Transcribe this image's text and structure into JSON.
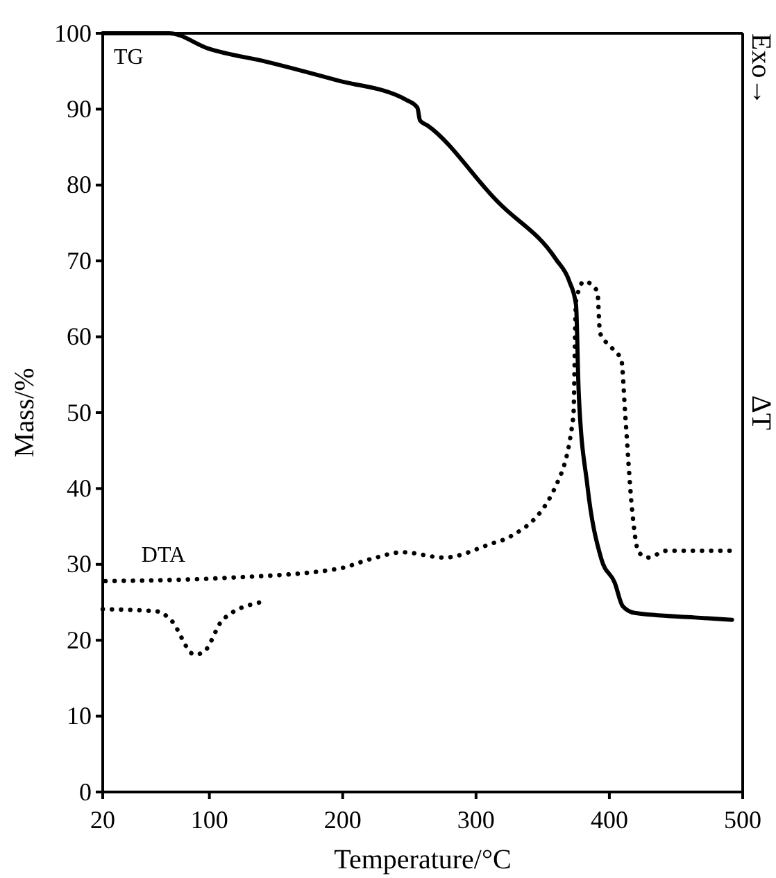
{
  "chart_data": {
    "type": "line",
    "xlabel": "Temperature/°C",
    "ylabel": "Mass/%",
    "y2label": "ΔT",
    "annotations": [
      "Exo→"
    ],
    "xlim": [
      20,
      500
    ],
    "xticks": [
      20,
      100,
      200,
      300,
      400,
      500
    ],
    "ylim": [
      0,
      100
    ],
    "yticks": [
      0,
      10,
      20,
      30,
      40,
      50,
      60,
      70,
      80,
      90,
      100
    ],
    "series": [
      {
        "name": "TG",
        "color": "#000000",
        "line_style": "solid",
        "x": [
          20,
          70,
          99,
          144,
          196,
          248,
          256,
          258,
          264,
          318,
          321,
          360,
          370,
          375,
          377,
          383.5,
          394,
          404,
          410,
          419,
          464,
          492
        ],
        "values": [
          100,
          100,
          98,
          96.2,
          93.8,
          91.2,
          90.2,
          88.5,
          87.8,
          77.5,
          77,
          70.2,
          67.3,
          64.2,
          52.7,
          40.4,
          30.7,
          27.6,
          24.5,
          23.6,
          23,
          22.7
        ]
      },
      {
        "name": "DTA",
        "color": "#000000",
        "line_style": "dotted",
        "x": [
          22,
          110,
          196,
          221,
          245,
          276,
          311,
          325,
          360,
          373,
          375,
          381,
          391,
          393,
          401,
          409,
          412,
          417,
          422,
          429,
          443,
          492
        ],
        "values": [
          27.8,
          28.2,
          29.4,
          30.7,
          31.6,
          30.9,
          32.7,
          33.6,
          40.4,
          49.5,
          64.7,
          67.3,
          66,
          60.5,
          58.7,
          56.9,
          49.5,
          37.3,
          31.6,
          30.9,
          31.8,
          31.8
        ]
      },
      {
        "color": "#000000",
        "line_style": "dotted",
        "x": [
          20,
          61,
          71,
          89,
          96,
          110,
          138
        ],
        "values": [
          24.1,
          23.8,
          22.7,
          18.1,
          18.5,
          22.7,
          25
        ]
      }
    ],
    "legend": false,
    "grid": false
  }
}
